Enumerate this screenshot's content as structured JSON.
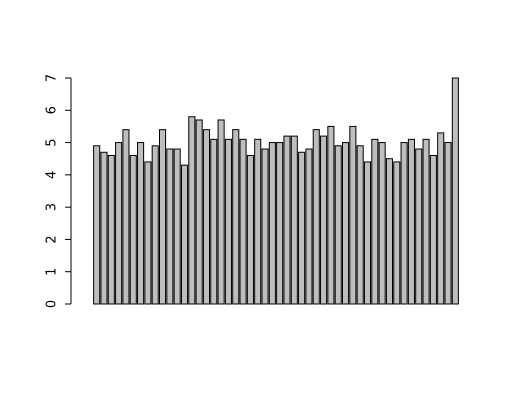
{
  "chart_data": {
    "type": "bar",
    "values": [
      4.9,
      4.7,
      4.6,
      5.0,
      5.4,
      4.6,
      5.0,
      4.4,
      4.9,
      5.4,
      4.8,
      4.8,
      4.3,
      5.8,
      5.7,
      5.4,
      5.1,
      5.7,
      5.1,
      5.4,
      5.1,
      4.6,
      5.1,
      4.8,
      5.0,
      5.0,
      5.2,
      5.2,
      4.7,
      4.8,
      5.4,
      5.2,
      5.5,
      4.9,
      5.0,
      5.5,
      4.9,
      4.4,
      5.1,
      5.0,
      4.5,
      4.4,
      5.0,
      5.1,
      4.8,
      5.1,
      4.6,
      5.3,
      5.0,
      7.0
    ],
    "y_ticks": [
      "0",
      "1",
      "2",
      "3",
      "4",
      "5",
      "6",
      "7"
    ],
    "ylim": [
      0,
      7
    ],
    "grid": false,
    "colors": {
      "bar_fill": "#bebebe",
      "bar_stroke": "#000000"
    }
  }
}
